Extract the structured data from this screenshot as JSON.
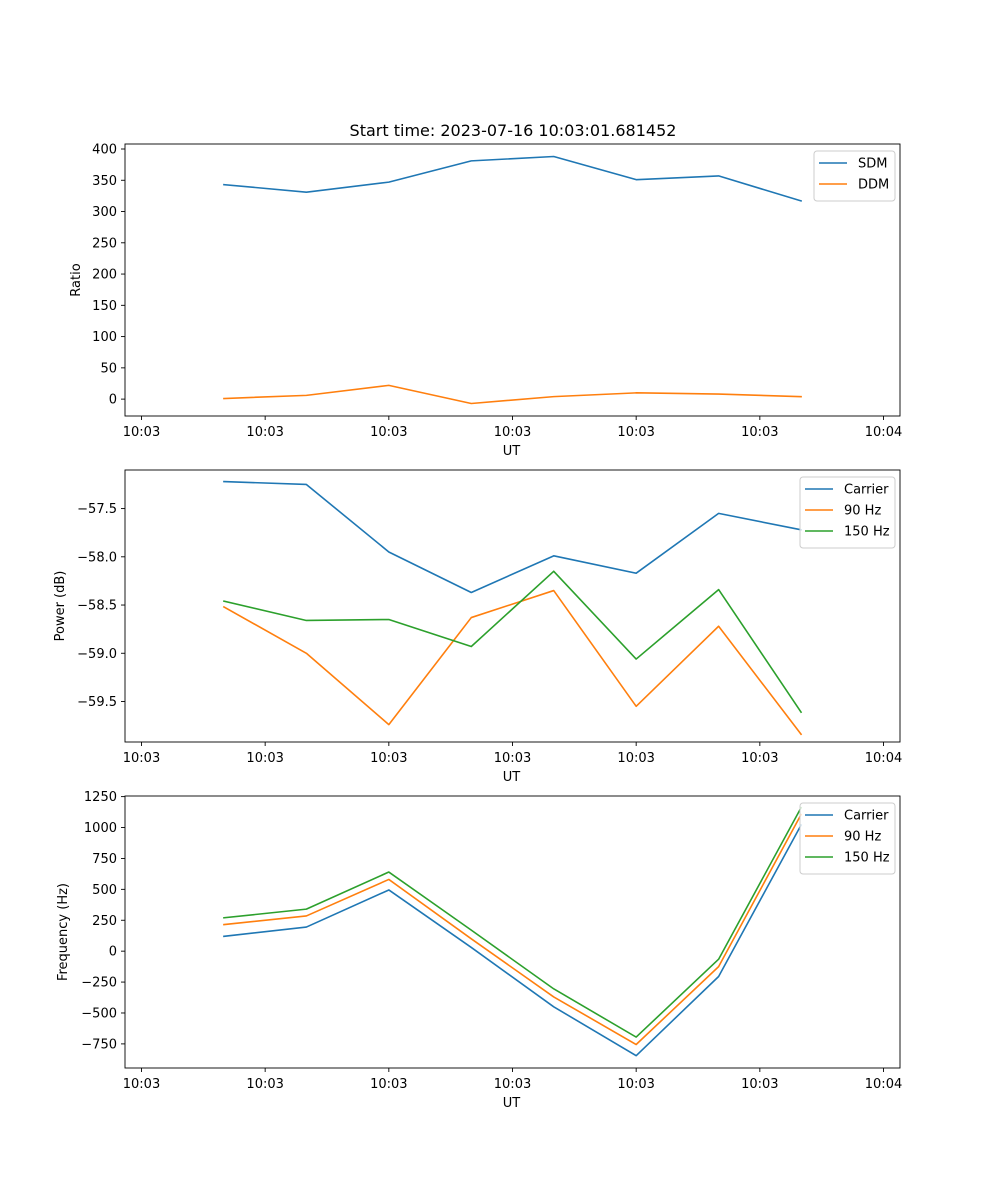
{
  "figure_title": "Start time: 2023-07-16 10:03:01.681452",
  "colors": {
    "blue": "#1f77b4",
    "orange": "#ff7f0e",
    "green": "#2ca02c"
  },
  "chart_data": [
    {
      "type": "line",
      "title": "Start time: 2023-07-16 10:03:01.681452",
      "xlabel": "UT",
      "ylabel": "Ratio",
      "xlim": [
        -0.2,
        9.2
      ],
      "x": [
        1,
        2,
        3,
        4,
        5,
        6,
        7,
        8
      ],
      "xticks": [
        0,
        1.5,
        3,
        4.5,
        6,
        7.5,
        9
      ],
      "xtick_labels": [
        "10:03",
        "10:03",
        "10:03",
        "10:03",
        "10:03",
        "10:03",
        "10:04"
      ],
      "ylim": [
        -27,
        408
      ],
      "yticks": [
        0,
        50,
        100,
        150,
        200,
        250,
        300,
        350,
        400
      ],
      "ytick_labels": [
        "0",
        "50",
        "100",
        "150",
        "200",
        "250",
        "300",
        "350",
        "400"
      ],
      "legend": "top-right",
      "series": [
        {
          "name": "SDM",
          "color": "#1f77b4",
          "values": [
            343,
            331,
            347,
            381,
            388,
            351,
            357,
            317
          ]
        },
        {
          "name": "DDM",
          "color": "#ff7f0e",
          "values": [
            1,
            6,
            22,
            -7,
            4,
            10,
            8,
            4
          ]
        }
      ]
    },
    {
      "type": "line",
      "title": "",
      "xlabel": "UT",
      "ylabel": "Power (dB)",
      "xlim": [
        -0.2,
        9.2
      ],
      "x": [
        1,
        2,
        3,
        4,
        5,
        6,
        7,
        8
      ],
      "xticks": [
        0,
        1.5,
        3,
        4.5,
        6,
        7.5,
        9
      ],
      "xtick_labels": [
        "10:03",
        "10:03",
        "10:03",
        "10:03",
        "10:03",
        "10:03",
        "10:04"
      ],
      "ylim": [
        -59.92,
        -57.1
      ],
      "yticks": [
        -57.5,
        -58.0,
        -58.5,
        -59.0,
        -59.5
      ],
      "ytick_labels": [
        "−57.5",
        "−58.0",
        "−58.5",
        "−59.0",
        "−59.5"
      ],
      "legend": "top-right",
      "series": [
        {
          "name": "Carrier",
          "color": "#1f77b4",
          "values": [
            -57.22,
            -57.25,
            -57.95,
            -58.37,
            -57.99,
            -58.17,
            -57.55,
            -57.72
          ]
        },
        {
          "name": "90 Hz",
          "color": "#ff7f0e",
          "values": [
            -58.52,
            -59.0,
            -59.74,
            -58.63,
            -58.35,
            -59.55,
            -58.72,
            -59.84
          ]
        },
        {
          "name": "150 Hz",
          "color": "#2ca02c",
          "values": [
            -58.46,
            -58.66,
            -58.65,
            -58.93,
            -58.15,
            -59.06,
            -58.34,
            -59.61
          ]
        }
      ]
    },
    {
      "type": "line",
      "title": "",
      "xlabel": "UT",
      "ylabel": "Frequency (Hz)",
      "xlim": [
        -0.2,
        9.2
      ],
      "x": [
        1,
        2,
        3,
        4,
        5,
        6,
        7,
        8
      ],
      "xticks": [
        0,
        1.5,
        3,
        4.5,
        6,
        7.5,
        9
      ],
      "xtick_labels": [
        "10:03",
        "10:03",
        "10:03",
        "10:03",
        "10:03",
        "10:03",
        "10:04"
      ],
      "ylim": [
        -945,
        1255
      ],
      "yticks": [
        1250,
        1000,
        750,
        500,
        250,
        0,
        -250,
        -500,
        -750
      ],
      "ytick_labels": [
        "1250",
        "1000",
        "750",
        "500",
        "250",
        "0",
        "−250",
        "−500",
        "−750"
      ],
      "legend": "top-right",
      "series": [
        {
          "name": "Carrier",
          "color": "#1f77b4",
          "values": [
            120,
            195,
            495,
            30,
            -450,
            -845,
            -205,
            1020
          ]
        },
        {
          "name": "90 Hz",
          "color": "#ff7f0e",
          "values": [
            215,
            285,
            580,
            100,
            -370,
            -755,
            -125,
            1105
          ]
        },
        {
          "name": "150 Hz",
          "color": "#2ca02c",
          "values": [
            270,
            340,
            640,
            170,
            -305,
            -695,
            -65,
            1160
          ]
        }
      ]
    }
  ]
}
